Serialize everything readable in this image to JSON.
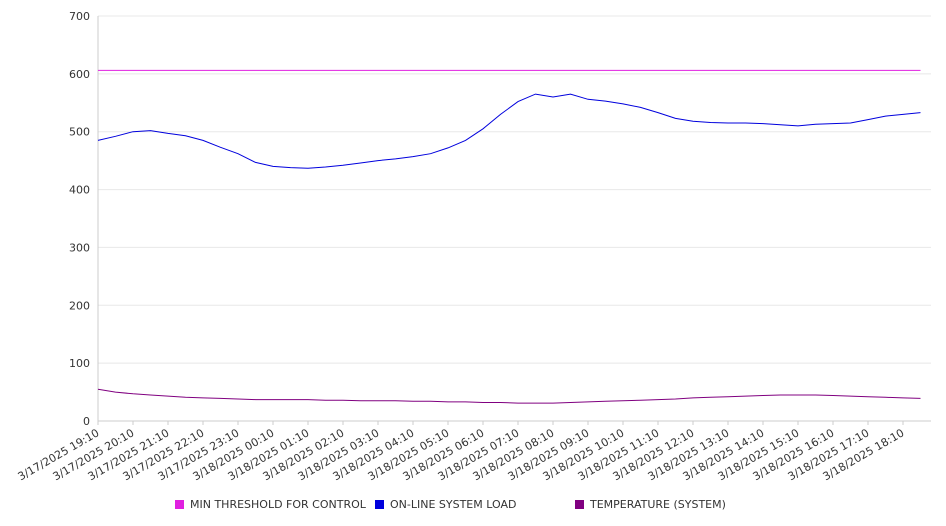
{
  "chart_data": {
    "type": "line",
    "title": "",
    "xlabel": "",
    "ylabel": "",
    "ylim": [
      0,
      700
    ],
    "yticks": [
      "0",
      "100",
      "200",
      "300",
      "400",
      "500",
      "600",
      "700"
    ],
    "x_ticks": [
      "3/17/2025 19:10",
      "3/17/2025 20:10",
      "3/17/2025 21:10",
      "3/17/2025 22:10",
      "3/17/2025 23:10",
      "3/18/2025 00:10",
      "3/18/2025 01:10",
      "3/18/2025 02:10",
      "3/18/2025 03:10",
      "3/18/2025 04:10",
      "3/18/2025 05:10",
      "3/18/2025 06:10",
      "3/18/2025 07:10",
      "3/18/2025 08:10",
      "3/18/2025 09:10",
      "3/18/2025 10:10",
      "3/18/2025 11:10",
      "3/18/2025 12:10",
      "3/18/2025 13:10",
      "3/18/2025 14:10",
      "3/18/2025 15:10",
      "3/18/2025 16:10",
      "3/18/2025 17:10",
      "3/18/2025 18:10"
    ],
    "x": [
      "3/17/2025 19:10",
      "3/17/2025 19:40",
      "3/17/2025 20:10",
      "3/17/2025 20:40",
      "3/17/2025 21:10",
      "3/17/2025 21:40",
      "3/17/2025 22:10",
      "3/17/2025 22:40",
      "3/17/2025 23:10",
      "3/17/2025 23:40",
      "3/18/2025 00:10",
      "3/18/2025 00:40",
      "3/18/2025 01:10",
      "3/18/2025 01:40",
      "3/18/2025 02:10",
      "3/18/2025 02:40",
      "3/18/2025 03:10",
      "3/18/2025 03:40",
      "3/18/2025 04:10",
      "3/18/2025 04:40",
      "3/18/2025 05:10",
      "3/18/2025 05:40",
      "3/18/2025 06:10",
      "3/18/2025 06:40",
      "3/18/2025 07:10",
      "3/18/2025 07:40",
      "3/18/2025 08:10",
      "3/18/2025 08:40",
      "3/18/2025 09:10",
      "3/18/2025 09:40",
      "3/18/2025 10:10",
      "3/18/2025 10:40",
      "3/18/2025 11:10",
      "3/18/2025 11:40",
      "3/18/2025 12:10",
      "3/18/2025 12:40",
      "3/18/2025 13:10",
      "3/18/2025 13:40",
      "3/18/2025 14:10",
      "3/18/2025 14:40",
      "3/18/2025 15:10",
      "3/18/2025 15:40",
      "3/18/2025 16:10",
      "3/18/2025 16:40",
      "3/18/2025 17:10",
      "3/18/2025 17:40",
      "3/18/2025 18:10",
      "3/18/2025 18:40"
    ],
    "series": [
      {
        "name": "MIN THRESHOLD FOR CONTROL",
        "color": "#e020e0",
        "values": [
          606,
          606,
          606,
          606,
          606,
          606,
          606,
          606,
          606,
          606,
          606,
          606,
          606,
          606,
          606,
          606,
          606,
          606,
          606,
          606,
          606,
          606,
          606,
          606,
          606,
          606,
          606,
          606,
          606,
          606,
          606,
          606,
          606,
          606,
          606,
          606,
          606,
          606,
          606,
          606,
          606,
          606,
          606,
          606,
          606,
          606,
          606,
          606
        ]
      },
      {
        "name": "ON-LINE SYSTEM LOAD",
        "color": "#0000dd",
        "values": [
          485,
          492,
          500,
          502,
          497,
          493,
          485,
          473,
          462,
          447,
          440,
          438,
          437,
          439,
          442,
          446,
          450,
          453,
          457,
          462,
          472,
          485,
          505,
          530,
          552,
          565,
          560,
          565,
          556,
          553,
          548,
          542,
          533,
          523,
          518,
          516,
          515,
          515,
          514,
          512,
          510,
          513,
          514,
          515,
          521,
          527,
          530,
          533
        ]
      },
      {
        "name": "TEMPERATURE (SYSTEM)",
        "color": "#800080",
        "values": [
          55,
          50,
          47,
          45,
          43,
          41,
          40,
          39,
          38,
          37,
          37,
          37,
          37,
          36,
          36,
          35,
          35,
          35,
          34,
          34,
          33,
          33,
          32,
          32,
          31,
          31,
          31,
          32,
          33,
          34,
          35,
          36,
          37,
          38,
          40,
          41,
          42,
          43,
          44,
          45,
          45,
          45,
          44,
          43,
          42,
          41,
          40,
          39
        ]
      }
    ],
    "grid": true,
    "legend_position": "bottom"
  }
}
